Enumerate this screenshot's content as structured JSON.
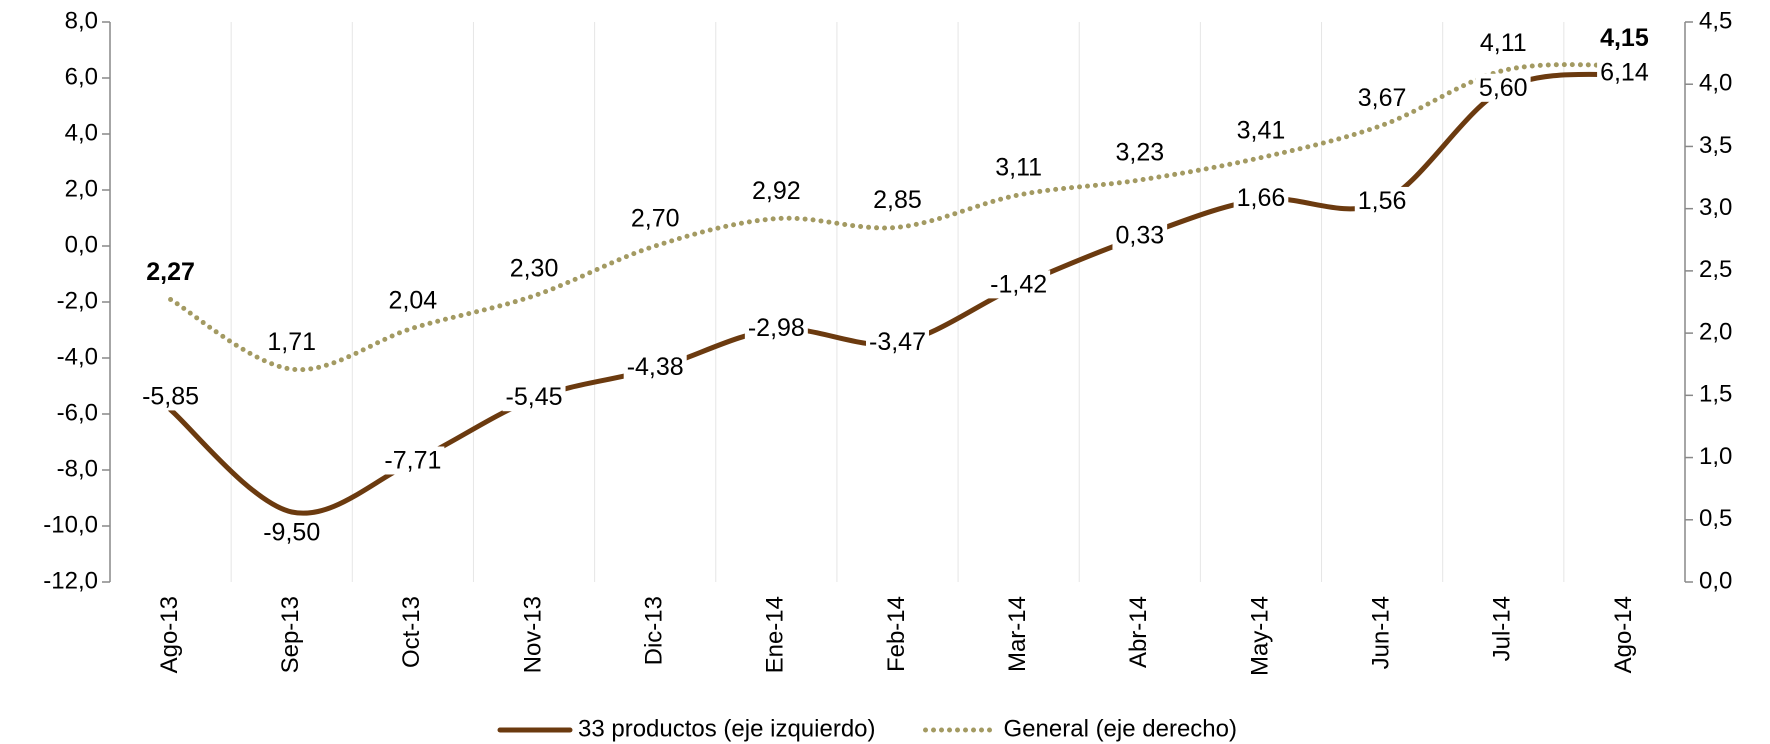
{
  "chart_data": {
    "type": "line",
    "categories": [
      "Ago-13",
      "Sep-13",
      "Oct-13",
      "Nov-13",
      "Dic-13",
      "Ene-14",
      "Feb-14",
      "Mar-14",
      "Abr-14",
      "May-14",
      "Jun-14",
      "Jul-14",
      "Ago-14"
    ],
    "series": [
      {
        "name": "33 productos (eje izquierdo)",
        "color": "#6b3a0f",
        "label_color": "#3d3d0a",
        "dash": "solid",
        "axis": "y",
        "values": [
          -5.85,
          -9.5,
          -7.71,
          -5.45,
          -4.38,
          -2.98,
          -3.47,
          -1.42,
          0.33,
          1.66,
          1.56,
          5.6,
          6.14
        ],
        "value_labels": [
          "-5,85",
          "-9,50",
          "-7,71",
          "-5,45",
          "-4,38",
          "-2,98",
          "-3,47",
          "-1,42",
          "0,33",
          "1,66",
          "1,56",
          "5,60",
          "6,14"
        ]
      },
      {
        "name": "General (eje derecho)",
        "color": "#a39a62",
        "label_color": "#8c8c1a",
        "dash": "dotted",
        "axis": "y2",
        "bold_labels": [
          0,
          12
        ],
        "values": [
          2.27,
          1.71,
          2.04,
          2.3,
          2.7,
          2.92,
          2.85,
          3.11,
          3.23,
          3.41,
          3.67,
          4.11,
          4.15
        ],
        "value_labels": [
          "2,27",
          "1,71",
          "2,04",
          "2,30",
          "2,70",
          "2,92",
          "2,85",
          "3,11",
          "3,23",
          "3,41",
          "3,67",
          "4,11",
          "4,15"
        ]
      }
    ],
    "ylim": [
      -12,
      8
    ],
    "yticks": [
      {
        "value": -12,
        "label": "-12,0"
      },
      {
        "value": -10,
        "label": "-10,0"
      },
      {
        "value": -8,
        "label": "-8,0"
      },
      {
        "value": -6,
        "label": "-6,0"
      },
      {
        "value": -4,
        "label": "-4,0"
      },
      {
        "value": -2,
        "label": "-2,0"
      },
      {
        "value": 0,
        "label": "0,0"
      },
      {
        "value": 2,
        "label": "2,0"
      },
      {
        "value": 4,
        "label": "4,0"
      },
      {
        "value": 6,
        "label": "6,0"
      },
      {
        "value": 8,
        "label": "8,0"
      }
    ],
    "y2lim": [
      0,
      4.5
    ],
    "y2ticks": [
      {
        "value": 0,
        "label": "0,0"
      },
      {
        "value": 0.5,
        "label": "0,5"
      },
      {
        "value": 1,
        "label": "1,0"
      },
      {
        "value": 1.5,
        "label": "1,5"
      },
      {
        "value": 2,
        "label": "2,0"
      },
      {
        "value": 2.5,
        "label": "2,5"
      },
      {
        "value": 3,
        "label": "3,0"
      },
      {
        "value": 3.5,
        "label": "3,5"
      },
      {
        "value": 4,
        "label": "4,0"
      },
      {
        "value": 4.5,
        "label": "4,5"
      }
    ],
    "xgrid": true,
    "legend": "bottom"
  }
}
